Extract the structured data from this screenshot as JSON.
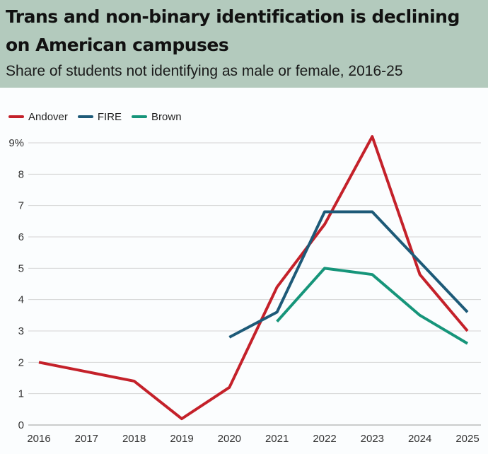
{
  "title": "Trans and non-binary identification is declining on American campuses",
  "subtitle": "Share of students not identifying as male or female, 2016-25",
  "chart_data": {
    "type": "line",
    "x": [
      "2016",
      "2017",
      "2018",
      "2019",
      "2020",
      "2021",
      "2022",
      "2023",
      "2024",
      "2025"
    ],
    "y_ticks": [
      "0",
      "1",
      "2",
      "3",
      "4",
      "5",
      "6",
      "7",
      "8",
      "9%"
    ],
    "ylim": [
      0,
      9
    ],
    "grid": true,
    "legend_position": "top-left",
    "series": [
      {
        "name": "Andover",
        "color": "#c4212a",
        "values": [
          2.0,
          null,
          1.4,
          0.2,
          1.2,
          4.4,
          6.4,
          9.2,
          4.8,
          3.0
        ]
      },
      {
        "name": "FIRE",
        "color": "#1d5a78",
        "values": [
          null,
          null,
          null,
          null,
          2.8,
          3.6,
          6.8,
          6.8,
          5.2,
          3.6
        ]
      },
      {
        "name": "Brown",
        "color": "#16957a",
        "values": [
          null,
          null,
          null,
          null,
          null,
          3.3,
          5.0,
          4.8,
          3.5,
          2.6
        ]
      }
    ]
  }
}
